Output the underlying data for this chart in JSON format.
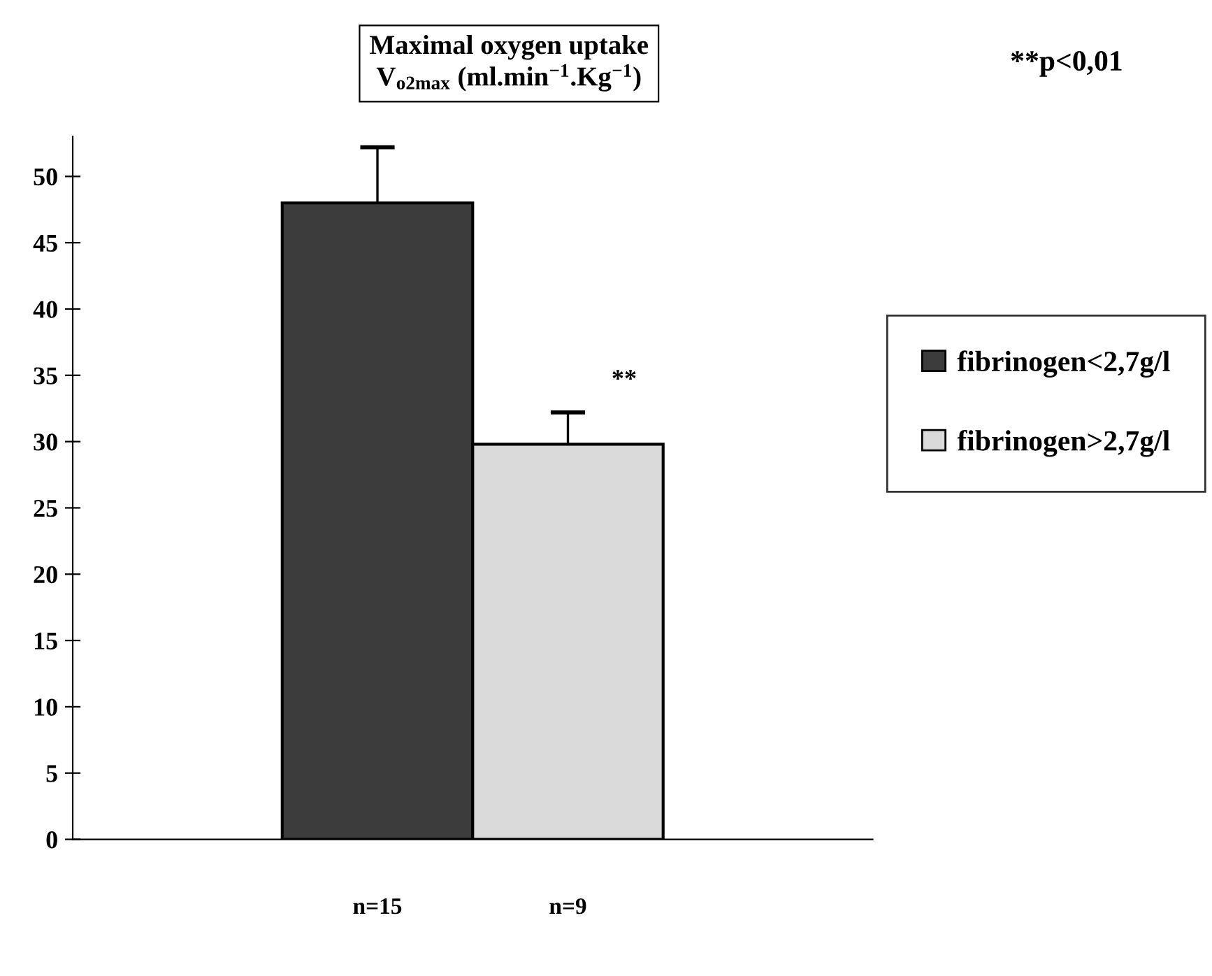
{
  "chart_data": {
    "type": "bar",
    "title": "Maximal oxygen uptake\nV$_{o2max}$ (ml.min$^{−1}$.Kg$^{−1}$)",
    "categories": [
      "n=15",
      "n=9"
    ],
    "series": [
      {
        "name": "fibrinogen<2,7g/l",
        "color": "#3c3c3c",
        "values": [
          48,
          null
        ],
        "errors": [
          [
            48,
            52.2
          ],
          null
        ]
      },
      {
        "name": "fibrinogen>2,7g/l",
        "color": "#dadada",
        "values": [
          null,
          29.8
        ],
        "errors": [
          null,
          [
            29.8,
            32.2
          ]
        ]
      }
    ],
    "ylim": [
      0,
      53
    ],
    "yticks": [
      0,
      5,
      10,
      15,
      20,
      25,
      30,
      35,
      40,
      45,
      50
    ],
    "legend": "right",
    "grid": false,
    "annotations": [
      "**p<0,01",
      "**"
    ]
  }
}
